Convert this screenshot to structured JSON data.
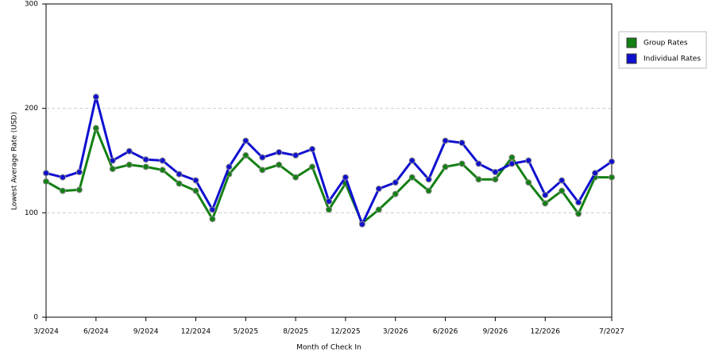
{
  "chart_data": {
    "type": "line",
    "x_label": "Month of Check In",
    "y_label": "Lowest Average Rate (USD)",
    "categories": [
      "3/2024",
      null,
      null,
      "6/2024",
      null,
      null,
      "9/2024",
      null,
      null,
      "12/2024",
      null,
      null,
      "5/2025",
      null,
      null,
      "8/2025",
      null,
      null,
      "12/2025",
      null,
      null,
      "3/2026",
      null,
      null,
      "6/2026",
      null,
      null,
      "9/2026",
      null,
      null,
      "12/2026",
      null,
      null,
      null,
      "7/2027"
    ],
    "series": [
      {
        "name": "Group Rates",
        "color": "#138013",
        "values": [
          130,
          121,
          122,
          181,
          142,
          146,
          144,
          141,
          128,
          121,
          94,
          137,
          155,
          141,
          146,
          134,
          144,
          103,
          128,
          90,
          103,
          118,
          134,
          121,
          144,
          147,
          132,
          132,
          153,
          129,
          109,
          121,
          99,
          134,
          134
        ]
      },
      {
        "name": "Individual Rates",
        "color": "#1010d0",
        "values": [
          138,
          134,
          139,
          211,
          150,
          159,
          151,
          150,
          137,
          131,
          103,
          144,
          169,
          153,
          158,
          155,
          161,
          111,
          134,
          89,
          123,
          129,
          150,
          132,
          169,
          167,
          147,
          139,
          147,
          150,
          117,
          131,
          110,
          138,
          149
        ]
      }
    ],
    "ylim": [
      0,
      300
    ],
    "yticks": [
      0,
      100,
      200,
      300
    ],
    "grid": true,
    "legend": "right"
  }
}
